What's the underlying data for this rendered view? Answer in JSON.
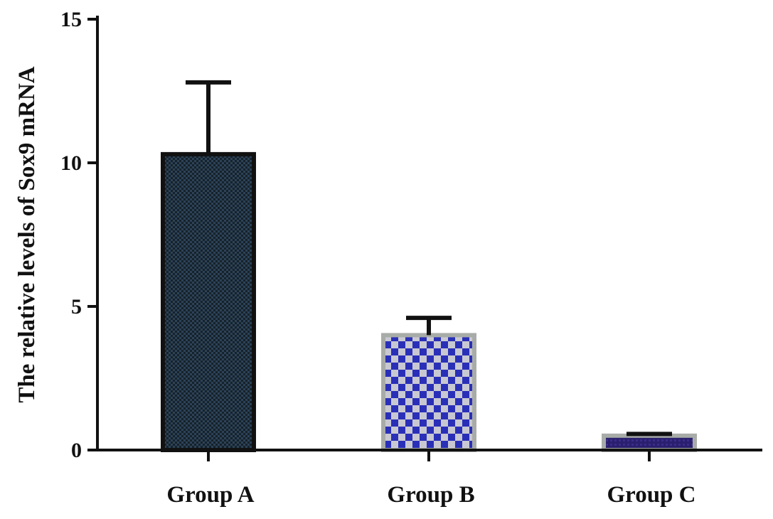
{
  "chart_data": {
    "type": "bar",
    "title": "",
    "xlabel": "",
    "ylabel": "The relative levels of Sox9 mRNA",
    "ylim": [
      0,
      15
    ],
    "yticks": [
      0,
      5,
      10,
      15
    ],
    "grid": false,
    "legend": "none",
    "categories": [
      "Group A",
      "Group B",
      "Group C"
    ],
    "values": [
      10.3,
      4.0,
      0.5
    ],
    "error_bars": [
      2.5,
      0.6,
      0.06
    ],
    "colors": {
      "Group A": "#1b2830",
      "Group B": "#2a2fb8",
      "Group C": "#2a1f6e",
      "bar_edge": "#a8aca8"
    }
  }
}
